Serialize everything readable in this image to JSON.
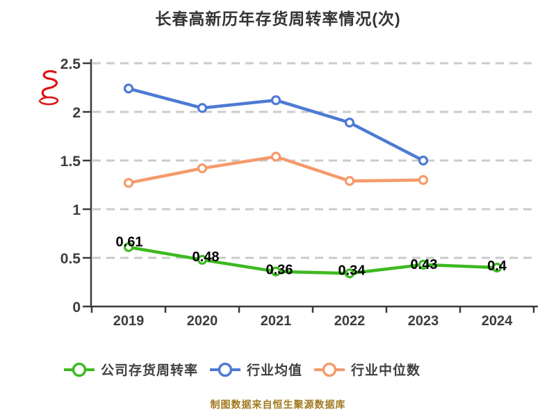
{
  "title": "长春高新历年存货周转率情况(次)",
  "source_note": "制图数据来自恒生聚源数据库",
  "watermark": {
    "icon": "red-script-logo-icon",
    "color": "#DD1414"
  },
  "colors": {
    "axis": "#3A3A3A",
    "grid": "#CBCBCB",
    "tick_text": "#3D3D3D",
    "data_label": "#000000",
    "legend_text": "#3F3F3F",
    "title_text": "#333333",
    "source_text": "#A0781E",
    "marker_fill": "#FFFFFF"
  },
  "legend": {
    "items": [
      {
        "label": "公司存货周转率"
      },
      {
        "label": "行业均值"
      },
      {
        "label": "行业中位数"
      }
    ]
  },
  "chart_data": {
    "type": "line",
    "title": "长春高新历年存货周转率情况(次)",
    "categories": [
      "2019",
      "2020",
      "2021",
      "2022",
      "2023",
      "2024"
    ],
    "series": [
      {
        "name": "公司存货周转率",
        "color": "#3DB922",
        "values": [
          0.61,
          0.48,
          0.36,
          0.34,
          0.43,
          0.4
        ],
        "point_labels": [
          "0.61",
          "0.48",
          "0.36",
          "0.34",
          "0.43",
          "0.4"
        ]
      },
      {
        "name": "行业均值",
        "color": "#4D7AD4",
        "values": [
          2.24,
          2.04,
          2.12,
          1.89,
          1.5,
          null
        ],
        "point_labels": null
      },
      {
        "name": "行业中位数",
        "color": "#F59A6B",
        "values": [
          1.27,
          1.42,
          1.54,
          1.29,
          1.3,
          null
        ],
        "point_labels": null
      }
    ],
    "ylim": [
      0,
      2.5
    ],
    "yticks": [
      0,
      0.5,
      1,
      1.5,
      2,
      2.5
    ],
    "ytick_labels": [
      "0",
      "0.5",
      "1",
      "1.5",
      "2",
      "2.5"
    ],
    "grid": true,
    "grid_style": "dashed",
    "legend_position": "bottom",
    "xlabel": "",
    "ylabel": ""
  }
}
